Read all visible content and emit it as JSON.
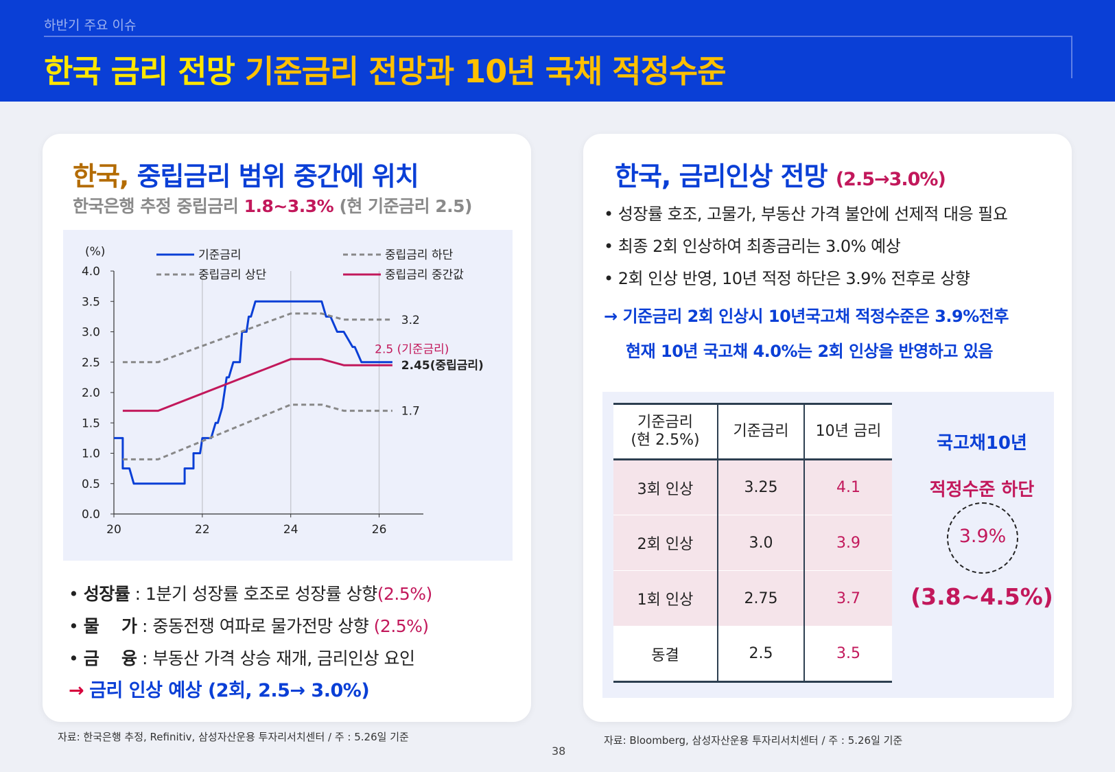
{
  "header": {
    "section": "하반기 주요 이슈",
    "title_part1": "한국 금리 전망",
    "title_part2": "기준금리 전망과 10년 국채 적정수준"
  },
  "left": {
    "title_country": "한국,",
    "title_rest": "중립금리 범위 중간에 위치",
    "subtitle_prefix": "한국은행 추정 중립금리",
    "subtitle_range": "1.8~3.3%",
    "subtitle_suffix": "(현 기준금리 2.5)",
    "bullets": [
      {
        "label": "성장률",
        "text": ": 1분기 성장률 호조로 성장률 상향",
        "value": "(2.5%)"
      },
      {
        "label": "물    가",
        "text": ": 중동전쟁 여파로 물가전망 상향",
        "value": "(2.5%)"
      },
      {
        "label": "금    융",
        "text": ": 부동산 가격 상승 재개, 금리인상 요인",
        "value": ""
      }
    ],
    "conclusion_arrow": "→",
    "conclusion": "금리 인상 예상 (2회, 2.5→ 3.0%)",
    "source": "자료: 한국은행 추정, Refinitiv, 삼성자산운용 투자리서치센터 / 주 : 5.26일 기준"
  },
  "right": {
    "title": "한국, 금리인상 전망",
    "title_range": "(2.5→3.0%)",
    "bullets": [
      "• 성장률 호조, 고물가, 부동산 가격 불안에 선제적 대응 필요",
      "• 최종 2회 인상하여 최종금리는 3.0%  예상",
      "• 2회 인상 반영, 10년 적정 하단은 3.9% 전후로 상향"
    ],
    "conclusion_line1": "→ 기준금리 2회 인상시 10년국고채 적정수준은 3.9%전후",
    "conclusion_line2": "현재 10년 국고채 4.0%는 2회 인상을 반영하고 있음",
    "table": {
      "headers": [
        "기준금리\n(현 2.5%)",
        "기준금리",
        "10년 금리"
      ],
      "rows": [
        {
          "scenario": "3회 인상",
          "base": "3.25",
          "ten_year": "4.1"
        },
        {
          "scenario": "2회 인상",
          "base": "3.0",
          "ten_year": "3.9"
        },
        {
          "scenario": "1회 인상",
          "base": "2.75",
          "ten_year": "3.7"
        },
        {
          "scenario": "동결",
          "base": "2.5",
          "ten_year": "3.5"
        }
      ]
    },
    "side_title": "국고채10년",
    "side_sub": "적정수준 하단",
    "side_value": "3.9%",
    "side_range": "(3.8~4.5%)",
    "source": "자료: Bloomberg, 삼성자산운용 투자리서치센터 / 주 : 5.26일 기준"
  },
  "page_number": "38",
  "colors": {
    "header_bg": "#0a3fd6",
    "title_yellow": "#ffe600",
    "base_rate": "#0a3fd6",
    "neutral_bounds": "#888888",
    "neutral_mid": "#c2185b"
  },
  "chart_data": {
    "type": "line",
    "unit_label": "(%)",
    "ylim": [
      0,
      4.0
    ],
    "yticks": [
      0.0,
      0.5,
      1.0,
      1.5,
      2.0,
      2.5,
      3.0,
      3.5,
      4.0
    ],
    "xlim": [
      20,
      27
    ],
    "xticks": [
      20,
      22,
      24,
      26
    ],
    "grid_x": [
      22,
      24,
      26
    ],
    "legend": [
      "기준금리",
      "중립금리 상단",
      "중립금리 하단",
      "중립금리 중간값"
    ],
    "series": [
      {
        "name": "기준금리",
        "style": "solid",
        "color": "#0a3fd6",
        "x": [
          20.0,
          20.2,
          20.2,
          20.35,
          20.45,
          20.5,
          21.6,
          21.6,
          21.8,
          21.8,
          21.95,
          22.0,
          22.2,
          22.3,
          22.35,
          22.45,
          22.5,
          22.55,
          22.6,
          22.7,
          22.85,
          22.9,
          23.0,
          23.05,
          23.1,
          23.2,
          24.0,
          24.7,
          24.8,
          24.9,
          25.05,
          25.2,
          25.4,
          25.45,
          25.6,
          25.65,
          26.3
        ],
        "y": [
          1.25,
          1.25,
          0.75,
          0.75,
          0.5,
          0.5,
          0.5,
          0.75,
          0.75,
          1.0,
          1.0,
          1.25,
          1.25,
          1.5,
          1.5,
          1.75,
          2.0,
          2.25,
          2.25,
          2.5,
          2.5,
          3.0,
          3.0,
          3.25,
          3.25,
          3.5,
          3.5,
          3.5,
          3.25,
          3.25,
          3.0,
          3.0,
          2.75,
          2.75,
          2.5,
          2.5,
          2.5
        ]
      },
      {
        "name": "중립금리 상단",
        "style": "dashed",
        "color": "#888888",
        "x": [
          20.2,
          21.0,
          24.0,
          24.7,
          25.2,
          26.3
        ],
        "y": [
          2.5,
          2.5,
          3.3,
          3.3,
          3.2,
          3.2
        ]
      },
      {
        "name": "중립금리 하단",
        "style": "dashed",
        "color": "#888888",
        "x": [
          20.2,
          21.0,
          24.0,
          24.7,
          25.2,
          26.3
        ],
        "y": [
          0.9,
          0.9,
          1.8,
          1.8,
          1.7,
          1.7
        ]
      },
      {
        "name": "중립금리 중간값",
        "style": "solid",
        "color": "#c2185b",
        "x": [
          20.2,
          21.0,
          24.0,
          24.7,
          25.2,
          26.3
        ],
        "y": [
          1.7,
          1.7,
          2.55,
          2.55,
          2.45,
          2.45
        ]
      }
    ],
    "annotations": [
      {
        "text": "3.2",
        "x": 26.5,
        "y": 3.2,
        "color": "#222222",
        "bold": false
      },
      {
        "text": "2.5 (기준금리)",
        "x": 25.9,
        "y": 2.72,
        "color": "#c2185b",
        "bold": false
      },
      {
        "text": "2.45(중립금리)",
        "x": 26.5,
        "y": 2.45,
        "color": "#222222",
        "bold": true
      },
      {
        "text": "1.7",
        "x": 26.5,
        "y": 1.7,
        "color": "#222222",
        "bold": false
      }
    ]
  }
}
